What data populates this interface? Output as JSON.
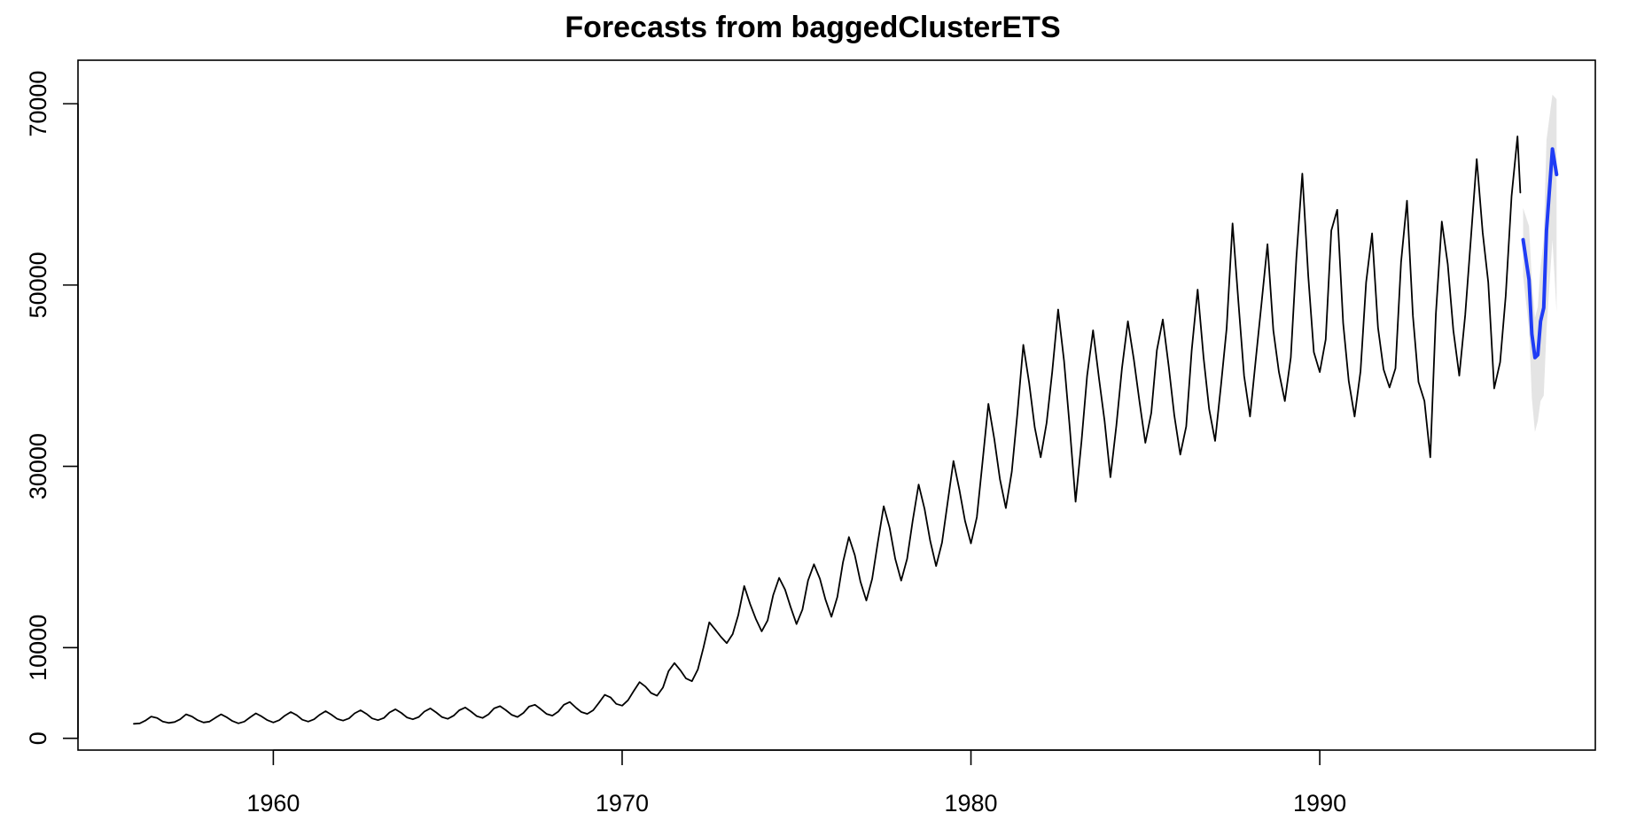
{
  "chart_data": {
    "type": "line",
    "title": "Forecasts from baggedClusterETS",
    "xlabel": "",
    "ylabel": "",
    "xlim": [
      1954.4,
      1997.9
    ],
    "ylim": [
      -1300,
      74800
    ],
    "x_ticks": [
      1960,
      1970,
      1980,
      1990
    ],
    "x_tick_labels": [
      "1960",
      "1970",
      "1980",
      "1990"
    ],
    "y_ticks": [
      0,
      10000,
      30000,
      50000,
      70000
    ],
    "y_tick_labels": [
      "0",
      "10000",
      "30000",
      "50000",
      "70000"
    ],
    "grid": false,
    "legend": "none",
    "colors": {
      "history": "#000000",
      "forecast": "#1f3cf5",
      "interval": "#e4e4e4"
    },
    "series": [
      {
        "role": "history",
        "points": [
          [
            1956.0,
            1600
          ],
          [
            1956.17,
            1650
          ],
          [
            1956.33,
            1950
          ],
          [
            1956.5,
            2400
          ],
          [
            1956.67,
            2250
          ],
          [
            1956.83,
            1850
          ],
          [
            1957.0,
            1700
          ],
          [
            1957.17,
            1800
          ],
          [
            1957.33,
            2100
          ],
          [
            1957.5,
            2650
          ],
          [
            1957.67,
            2400
          ],
          [
            1957.83,
            2000
          ],
          [
            1958.0,
            1750
          ],
          [
            1958.17,
            1850
          ],
          [
            1958.33,
            2250
          ],
          [
            1958.5,
            2650
          ],
          [
            1958.67,
            2300
          ],
          [
            1958.83,
            1900
          ],
          [
            1959.0,
            1650
          ],
          [
            1959.17,
            1850
          ],
          [
            1959.33,
            2300
          ],
          [
            1959.5,
            2750
          ],
          [
            1959.67,
            2400
          ],
          [
            1959.83,
            2000
          ],
          [
            1960.0,
            1750
          ],
          [
            1960.17,
            2000
          ],
          [
            1960.33,
            2500
          ],
          [
            1960.5,
            2900
          ],
          [
            1960.67,
            2550
          ],
          [
            1960.83,
            2050
          ],
          [
            1961.0,
            1850
          ],
          [
            1961.17,
            2100
          ],
          [
            1961.33,
            2600
          ],
          [
            1961.5,
            3000
          ],
          [
            1961.67,
            2600
          ],
          [
            1961.83,
            2150
          ],
          [
            1962.0,
            1950
          ],
          [
            1962.17,
            2200
          ],
          [
            1962.33,
            2750
          ],
          [
            1962.5,
            3100
          ],
          [
            1962.67,
            2700
          ],
          [
            1962.83,
            2200
          ],
          [
            1963.0,
            2000
          ],
          [
            1963.17,
            2250
          ],
          [
            1963.33,
            2850
          ],
          [
            1963.5,
            3200
          ],
          [
            1963.67,
            2800
          ],
          [
            1963.83,
            2300
          ],
          [
            1964.0,
            2100
          ],
          [
            1964.17,
            2350
          ],
          [
            1964.33,
            2950
          ],
          [
            1964.5,
            3300
          ],
          [
            1964.67,
            2850
          ],
          [
            1964.83,
            2350
          ],
          [
            1965.0,
            2150
          ],
          [
            1965.17,
            2500
          ],
          [
            1965.33,
            3100
          ],
          [
            1965.5,
            3400
          ],
          [
            1965.67,
            2950
          ],
          [
            1965.83,
            2450
          ],
          [
            1966.0,
            2250
          ],
          [
            1966.17,
            2650
          ],
          [
            1966.33,
            3300
          ],
          [
            1966.5,
            3550
          ],
          [
            1966.67,
            3100
          ],
          [
            1966.83,
            2600
          ],
          [
            1967.0,
            2350
          ],
          [
            1967.17,
            2800
          ],
          [
            1967.33,
            3500
          ],
          [
            1967.5,
            3700
          ],
          [
            1967.67,
            3200
          ],
          [
            1967.83,
            2700
          ],
          [
            1968.0,
            2500
          ],
          [
            1968.17,
            2950
          ],
          [
            1968.33,
            3700
          ],
          [
            1968.5,
            4000
          ],
          [
            1968.67,
            3400
          ],
          [
            1968.83,
            2900
          ],
          [
            1969.0,
            2700
          ],
          [
            1969.17,
            3100
          ],
          [
            1969.33,
            3900
          ],
          [
            1969.5,
            4800
          ],
          [
            1969.67,
            4500
          ],
          [
            1969.83,
            3800
          ],
          [
            1970.0,
            3600
          ],
          [
            1970.17,
            4200
          ],
          [
            1970.33,
            5200
          ],
          [
            1970.5,
            6200
          ],
          [
            1970.67,
            5700
          ],
          [
            1970.83,
            5000
          ],
          [
            1971.0,
            4700
          ],
          [
            1971.17,
            5600
          ],
          [
            1971.33,
            7400
          ],
          [
            1971.5,
            8300
          ],
          [
            1971.67,
            7500
          ],
          [
            1971.83,
            6600
          ],
          [
            1972.0,
            6300
          ],
          [
            1972.17,
            7600
          ],
          [
            1972.33,
            10000
          ],
          [
            1972.5,
            12800
          ],
          [
            1972.67,
            12000
          ],
          [
            1972.83,
            11200
          ],
          [
            1973.0,
            10500
          ],
          [
            1973.17,
            11500
          ],
          [
            1973.33,
            13600
          ],
          [
            1973.5,
            16800
          ],
          [
            1973.67,
            14800
          ],
          [
            1973.83,
            13200
          ],
          [
            1974.0,
            11800
          ],
          [
            1974.17,
            13000
          ],
          [
            1974.33,
            15800
          ],
          [
            1974.5,
            17700
          ],
          [
            1974.67,
            16400
          ],
          [
            1974.83,
            14500
          ],
          [
            1975.0,
            12600
          ],
          [
            1975.17,
            14200
          ],
          [
            1975.33,
            17400
          ],
          [
            1975.5,
            19200
          ],
          [
            1975.67,
            17600
          ],
          [
            1975.83,
            15300
          ],
          [
            1976.0,
            13400
          ],
          [
            1976.17,
            15600
          ],
          [
            1976.33,
            19400
          ],
          [
            1976.5,
            22200
          ],
          [
            1976.67,
            20200
          ],
          [
            1976.83,
            17300
          ],
          [
            1977.0,
            15200
          ],
          [
            1977.17,
            17600
          ],
          [
            1977.33,
            21600
          ],
          [
            1977.5,
            25600
          ],
          [
            1977.67,
            23200
          ],
          [
            1977.83,
            19800
          ],
          [
            1978.0,
            17400
          ],
          [
            1978.17,
            19800
          ],
          [
            1978.33,
            24000
          ],
          [
            1978.5,
            28000
          ],
          [
            1978.67,
            25300
          ],
          [
            1978.83,
            21800
          ],
          [
            1979.0,
            19000
          ],
          [
            1979.17,
            21600
          ],
          [
            1979.33,
            26000
          ],
          [
            1979.5,
            30600
          ],
          [
            1979.67,
            27400
          ],
          [
            1979.83,
            24000
          ],
          [
            1980.0,
            21500
          ],
          [
            1980.17,
            24400
          ],
          [
            1980.33,
            30400
          ],
          [
            1980.5,
            36900
          ],
          [
            1980.67,
            33000
          ],
          [
            1980.83,
            28600
          ],
          [
            1981.0,
            25400
          ],
          [
            1981.17,
            29400
          ],
          [
            1981.33,
            35800
          ],
          [
            1981.5,
            43400
          ],
          [
            1981.67,
            39200
          ],
          [
            1981.83,
            34300
          ],
          [
            1982.0,
            31000
          ],
          [
            1982.17,
            34800
          ],
          [
            1982.33,
            40400
          ],
          [
            1982.5,
            47300
          ],
          [
            1982.67,
            41600
          ],
          [
            1982.83,
            34400
          ],
          [
            1983.0,
            26100
          ],
          [
            1983.17,
            32800
          ],
          [
            1983.33,
            40000
          ],
          [
            1983.5,
            45000
          ],
          [
            1983.67,
            39700
          ],
          [
            1983.83,
            35000
          ],
          [
            1984.0,
            28800
          ],
          [
            1984.17,
            34500
          ],
          [
            1984.33,
            40800
          ],
          [
            1984.5,
            46000
          ],
          [
            1984.67,
            41800
          ],
          [
            1984.83,
            37200
          ],
          [
            1985.0,
            32600
          ],
          [
            1985.17,
            35900
          ],
          [
            1985.33,
            42800
          ],
          [
            1985.5,
            46200
          ],
          [
            1985.67,
            41000
          ],
          [
            1985.83,
            35600
          ],
          [
            1986.0,
            31300
          ],
          [
            1986.17,
            34400
          ],
          [
            1986.33,
            42800
          ],
          [
            1986.5,
            49500
          ],
          [
            1986.67,
            42000
          ],
          [
            1986.83,
            36300
          ],
          [
            1987.0,
            32800
          ],
          [
            1987.17,
            39000
          ],
          [
            1987.33,
            45200
          ],
          [
            1987.5,
            56800
          ],
          [
            1987.67,
            48000
          ],
          [
            1987.83,
            40000
          ],
          [
            1988.0,
            35500
          ],
          [
            1988.17,
            42000
          ],
          [
            1988.33,
            48000
          ],
          [
            1988.5,
            54500
          ],
          [
            1988.67,
            45000
          ],
          [
            1988.83,
            40400
          ],
          [
            1989.0,
            37200
          ],
          [
            1989.17,
            42000
          ],
          [
            1989.33,
            53000
          ],
          [
            1989.5,
            62300
          ],
          [
            1989.67,
            51000
          ],
          [
            1989.83,
            42600
          ],
          [
            1990.0,
            40400
          ],
          [
            1990.17,
            44000
          ],
          [
            1990.33,
            56000
          ],
          [
            1990.5,
            58300
          ],
          [
            1990.67,
            45800
          ],
          [
            1990.83,
            39400
          ],
          [
            1991.0,
            35500
          ],
          [
            1991.17,
            40500
          ],
          [
            1991.33,
            50300
          ],
          [
            1991.5,
            55700
          ],
          [
            1991.67,
            45300
          ],
          [
            1991.83,
            40700
          ],
          [
            1992.0,
            38700
          ],
          [
            1992.17,
            40800
          ],
          [
            1992.33,
            52500
          ],
          [
            1992.5,
            59300
          ],
          [
            1992.67,
            46600
          ],
          [
            1992.83,
            39300
          ],
          [
            1993.0,
            37200
          ],
          [
            1993.17,
            31000
          ],
          [
            1993.33,
            46800
          ],
          [
            1993.5,
            57000
          ],
          [
            1993.67,
            52300
          ],
          [
            1993.83,
            45000
          ],
          [
            1994.0,
            40000
          ],
          [
            1994.17,
            46700
          ],
          [
            1994.33,
            55000
          ],
          [
            1994.5,
            63900
          ],
          [
            1994.67,
            55800
          ],
          [
            1994.83,
            50300
          ],
          [
            1995.0,
            38600
          ],
          [
            1995.17,
            41500
          ],
          [
            1995.33,
            48800
          ],
          [
            1995.5,
            59800
          ],
          [
            1995.67,
            66400
          ],
          [
            1995.75,
            60200
          ]
        ]
      },
      {
        "role": "forecast",
        "points": [
          [
            1995.83,
            55000
          ],
          [
            1996.0,
            50600
          ],
          [
            1996.08,
            44600
          ],
          [
            1996.17,
            42000
          ],
          [
            1996.25,
            42300
          ],
          [
            1996.33,
            46000
          ],
          [
            1996.42,
            47500
          ],
          [
            1996.5,
            56000
          ],
          [
            1996.67,
            65000
          ],
          [
            1996.79,
            62200
          ]
        ]
      }
    ],
    "interval": {
      "x": [
        1995.83,
        1996.0,
        1996.08,
        1996.17,
        1996.25,
        1996.33,
        1996.42,
        1996.5,
        1996.67,
        1996.79
      ],
      "lower": [
        51000,
        45200,
        37500,
        33800,
        35000,
        37200,
        37800,
        45000,
        55000,
        47000
      ],
      "upper": [
        58500,
        56500,
        50500,
        46400,
        47600,
        52000,
        55000,
        66000,
        71000,
        70500
      ]
    }
  }
}
